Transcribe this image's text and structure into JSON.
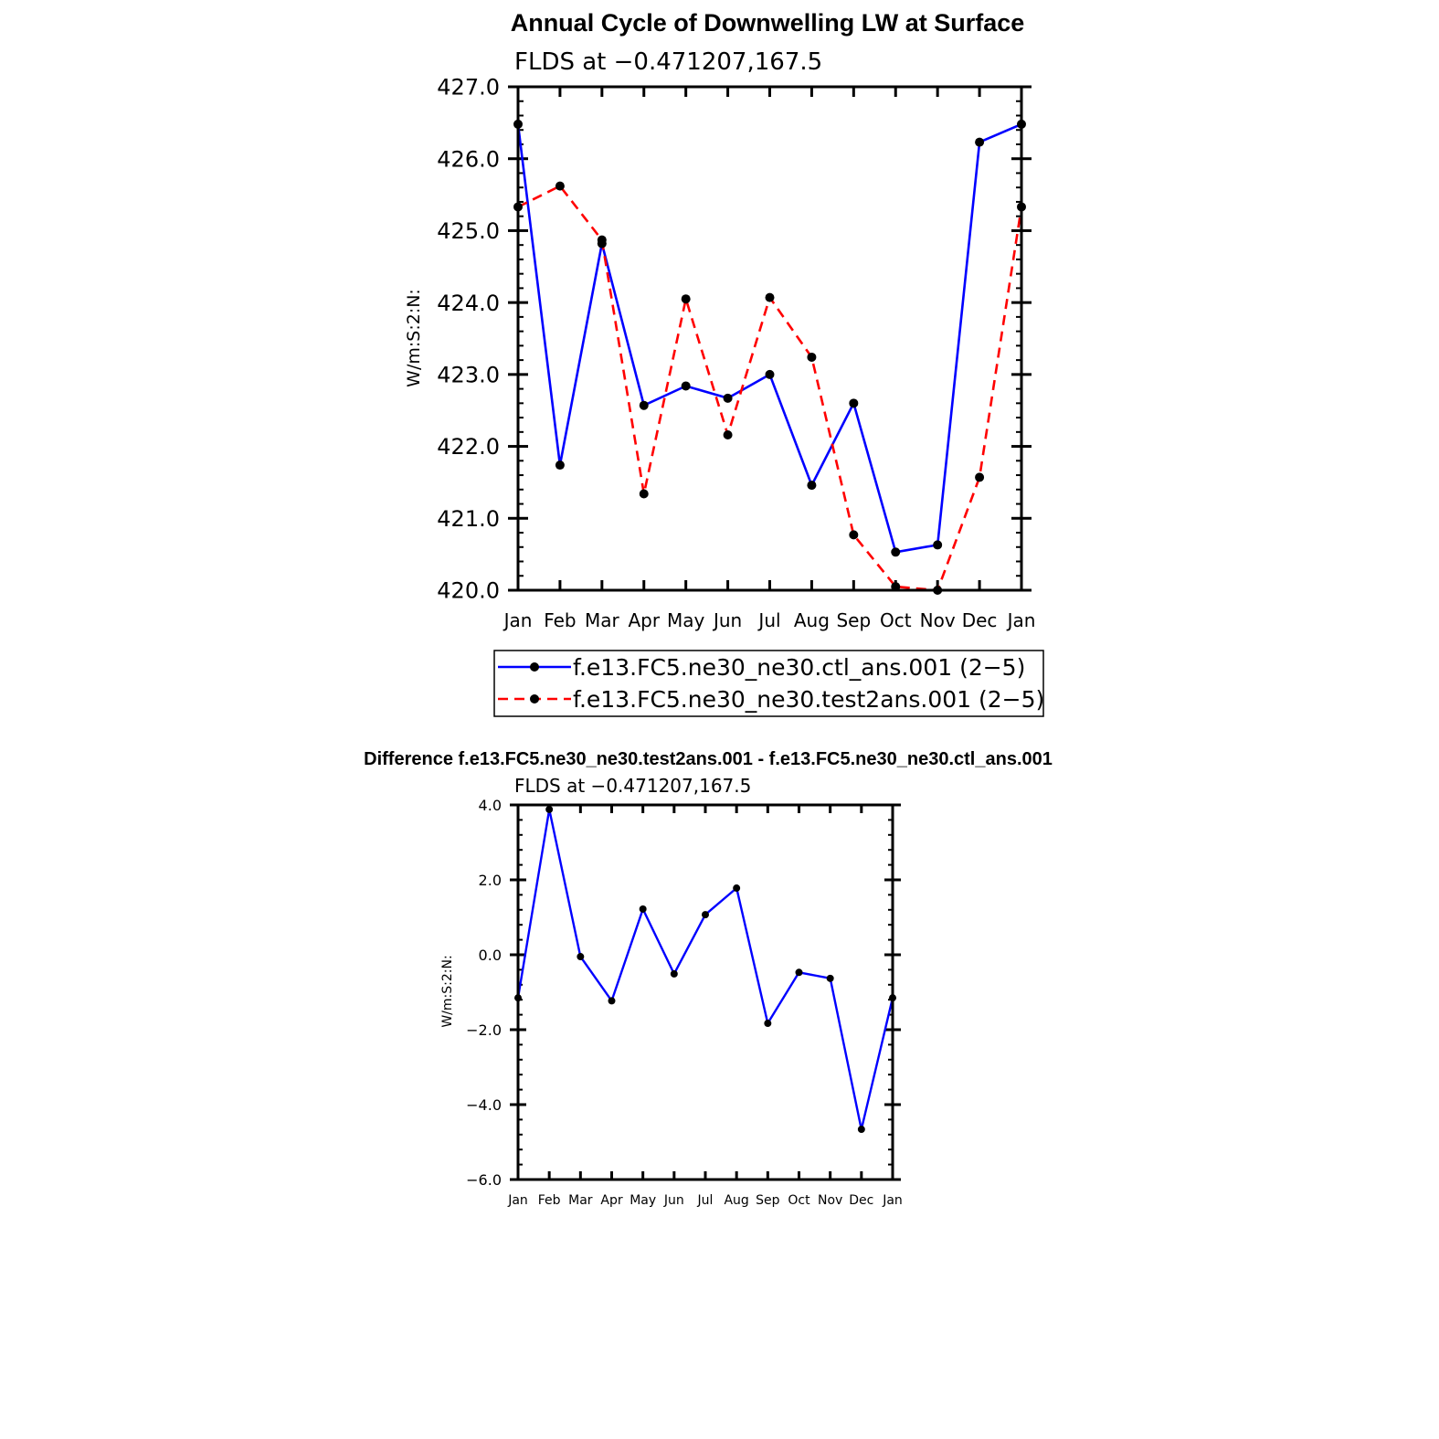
{
  "chart_data": [
    {
      "type": "line",
      "title": "Annual Cycle of Downwelling LW at Surface",
      "subtitle": "FLDS at −0.471207,167.5",
      "ylabel": "W/m:S:2:N:",
      "xlabel": "",
      "categories": [
        "Jan",
        "Feb",
        "Mar",
        "Apr",
        "May",
        "Jun",
        "Jul",
        "Aug",
        "Sep",
        "Oct",
        "Nov",
        "Dec",
        "Jan"
      ],
      "ylim": [
        420.0,
        427.0
      ],
      "yticks": [
        "420.0",
        "421.0",
        "422.0",
        "423.0",
        "424.0",
        "425.0",
        "426.0",
        "427.0"
      ],
      "grid": false,
      "legend_position": "bottom",
      "series": [
        {
          "name": "f.e13.FC5.ne30_ne30.ctl_ans.001 (2−5)",
          "color": "#0000ff",
          "dash": "solid",
          "values": [
            426.48,
            421.74,
            424.82,
            422.57,
            422.84,
            422.67,
            423.0,
            421.46,
            422.6,
            420.53,
            420.63,
            426.23,
            426.48
          ]
        },
        {
          "name": "f.e13.FC5.ne30_ne30.test2ans.001 (2−5)",
          "color": "#ff0000",
          "dash": "dashed",
          "values": [
            425.33,
            425.62,
            424.87,
            421.34,
            424.05,
            422.16,
            424.07,
            423.24,
            420.77,
            420.05,
            420.0,
            421.57,
            425.33
          ]
        }
      ]
    },
    {
      "type": "line",
      "title": "Difference f.e13.FC5.ne30_ne30.test2ans.001 - f.e13.FC5.ne30_ne30.ctl_ans.001",
      "subtitle": "FLDS at −0.471207,167.5",
      "ylabel": "W/m:S:2:N:",
      "xlabel": "",
      "categories": [
        "Jan",
        "Feb",
        "Mar",
        "Apr",
        "May",
        "Jun",
        "Jul",
        "Aug",
        "Sep",
        "Oct",
        "Nov",
        "Dec",
        "Jan"
      ],
      "ylim": [
        -6.0,
        4.0
      ],
      "yticks": [
        "−6.0",
        "−4.0",
        "−2.0",
        "0.0",
        "2.0",
        "4.0"
      ],
      "grid": false,
      "series": [
        {
          "color": "#0000ff",
          "dash": "solid",
          "values": [
            -1.15,
            3.88,
            -0.05,
            -1.23,
            1.22,
            -0.51,
            1.07,
            1.78,
            -1.83,
            -0.47,
            -0.63,
            -4.66,
            -1.15
          ]
        }
      ]
    }
  ]
}
